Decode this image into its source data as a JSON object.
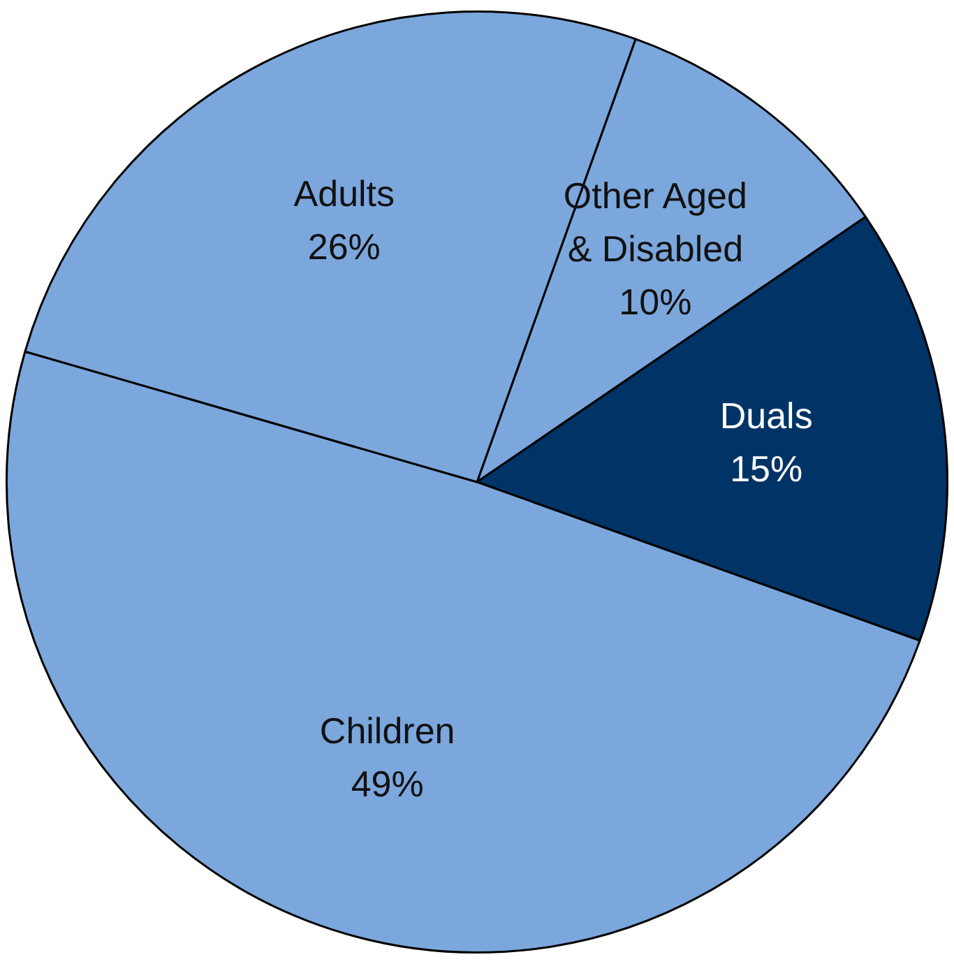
{
  "chart_data": {
    "type": "pie",
    "categories": [
      "Other Aged & Disabled",
      "Duals",
      "Children",
      "Adults"
    ],
    "values": [
      10,
      15,
      49,
      26
    ],
    "value_labels": [
      "10%",
      "15%",
      "49%",
      "26%"
    ],
    "colors": [
      "#7ba7dc",
      "#003366",
      "#7ba7dc",
      "#7ba7dc"
    ],
    "legend": false
  }
}
